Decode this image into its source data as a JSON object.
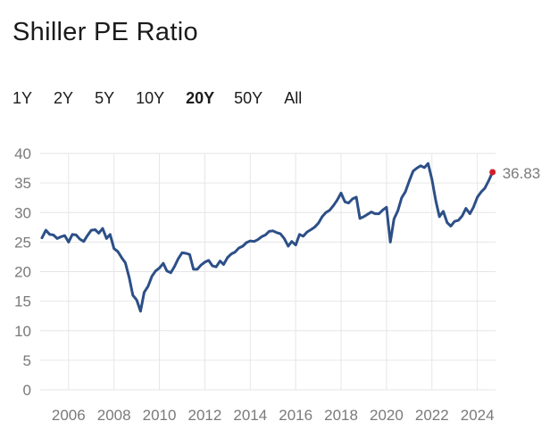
{
  "page": {
    "title": "Shiller PE Ratio"
  },
  "ranges": [
    {
      "label": "1Y",
      "active": false
    },
    {
      "label": "2Y",
      "active": false
    },
    {
      "label": "5Y",
      "active": false
    },
    {
      "label": "10Y",
      "active": false
    },
    {
      "label": "20Y",
      "active": true
    },
    {
      "label": "50Y",
      "active": false
    },
    {
      "label": "All",
      "active": false
    }
  ],
  "colors": {
    "line": "#2c4f87",
    "grid": "#e6e6e6",
    "marker": "#d11f2a",
    "tick_text": "#7a7a7a"
  },
  "chart_data": {
    "type": "line",
    "title": "Shiller PE Ratio",
    "xlabel": "",
    "ylabel": "",
    "xlim": [
      2004.75,
      2024.8
    ],
    "ylim": [
      0,
      40
    ],
    "grid": true,
    "legend": "none",
    "x_ticks": [
      2006,
      2008,
      2010,
      2012,
      2014,
      2016,
      2018,
      2020,
      2022,
      2024
    ],
    "y_ticks": [
      0,
      5,
      10,
      15,
      20,
      25,
      30,
      35,
      40
    ],
    "last_value_label": "36.83",
    "series": [
      {
        "x": [
          2004.83,
          2005.0,
          2005.17,
          2005.33,
          2005.5,
          2005.67,
          2005.83,
          2006.0,
          2006.17,
          2006.33,
          2006.5,
          2006.67,
          2006.83,
          2007.0,
          2007.17,
          2007.33,
          2007.5,
          2007.67,
          2007.83,
          2008.0,
          2008.17,
          2008.33,
          2008.5,
          2008.67,
          2008.83,
          2009.0,
          2009.17,
          2009.33,
          2009.5,
          2009.67,
          2009.83,
          2010.0,
          2010.17,
          2010.33,
          2010.5,
          2010.67,
          2010.83,
          2011.0,
          2011.17,
          2011.33,
          2011.5,
          2011.67,
          2011.83,
          2012.0,
          2012.17,
          2012.33,
          2012.5,
          2012.67,
          2012.83,
          2013.0,
          2013.17,
          2013.33,
          2013.5,
          2013.67,
          2013.83,
          2014.0,
          2014.17,
          2014.33,
          2014.5,
          2014.67,
          2014.83,
          2015.0,
          2015.17,
          2015.33,
          2015.5,
          2015.67,
          2015.83,
          2016.0,
          2016.17,
          2016.33,
          2016.5,
          2016.67,
          2016.83,
          2017.0,
          2017.17,
          2017.33,
          2017.5,
          2017.67,
          2017.83,
          2018.0,
          2018.17,
          2018.33,
          2018.5,
          2018.67,
          2018.83,
          2019.0,
          2019.17,
          2019.33,
          2019.5,
          2019.67,
          2019.83,
          2020.0,
          2020.17,
          2020.33,
          2020.5,
          2020.67,
          2020.83,
          2021.0,
          2021.17,
          2021.33,
          2021.5,
          2021.67,
          2021.83,
          2022.0,
          2022.17,
          2022.33,
          2022.5,
          2022.67,
          2022.83,
          2023.0,
          2023.17,
          2023.33,
          2023.5,
          2023.67,
          2023.83,
          2024.0,
          2024.17,
          2024.33,
          2024.5,
          2024.67
        ],
        "values": [
          25.7,
          27.0,
          26.3,
          26.2,
          25.6,
          25.9,
          26.1,
          25.0,
          26.3,
          26.2,
          25.5,
          25.1,
          26.1,
          27.0,
          27.1,
          26.5,
          27.3,
          25.6,
          26.3,
          23.9,
          23.4,
          22.4,
          21.5,
          19.0,
          16.0,
          15.2,
          13.3,
          16.5,
          17.5,
          19.2,
          20.1,
          20.6,
          21.4,
          20.1,
          19.8,
          20.9,
          22.2,
          23.2,
          23.1,
          22.9,
          20.4,
          20.4,
          21.1,
          21.6,
          21.9,
          21.0,
          20.8,
          21.8,
          21.2,
          22.4,
          23.0,
          23.3,
          24.0,
          24.3,
          24.9,
          25.2,
          25.1,
          25.4,
          25.9,
          26.2,
          26.8,
          26.9,
          26.6,
          26.4,
          25.6,
          24.3,
          25.1,
          24.5,
          26.3,
          26.0,
          26.7,
          27.1,
          27.5,
          28.2,
          29.3,
          30.0,
          30.4,
          31.2,
          32.1,
          33.3,
          31.8,
          31.6,
          32.3,
          32.6,
          29.0,
          29.3,
          29.7,
          30.1,
          29.8,
          29.8,
          30.4,
          30.9,
          25.0,
          28.9,
          30.3,
          32.5,
          33.5,
          35.3,
          37.0,
          37.5,
          37.9,
          37.6,
          38.3,
          35.6,
          32.0,
          29.3,
          30.2,
          28.3,
          27.7,
          28.5,
          28.7,
          29.4,
          30.7,
          29.8,
          30.9,
          32.6,
          33.5,
          34.1,
          35.4,
          36.83
        ]
      }
    ]
  }
}
